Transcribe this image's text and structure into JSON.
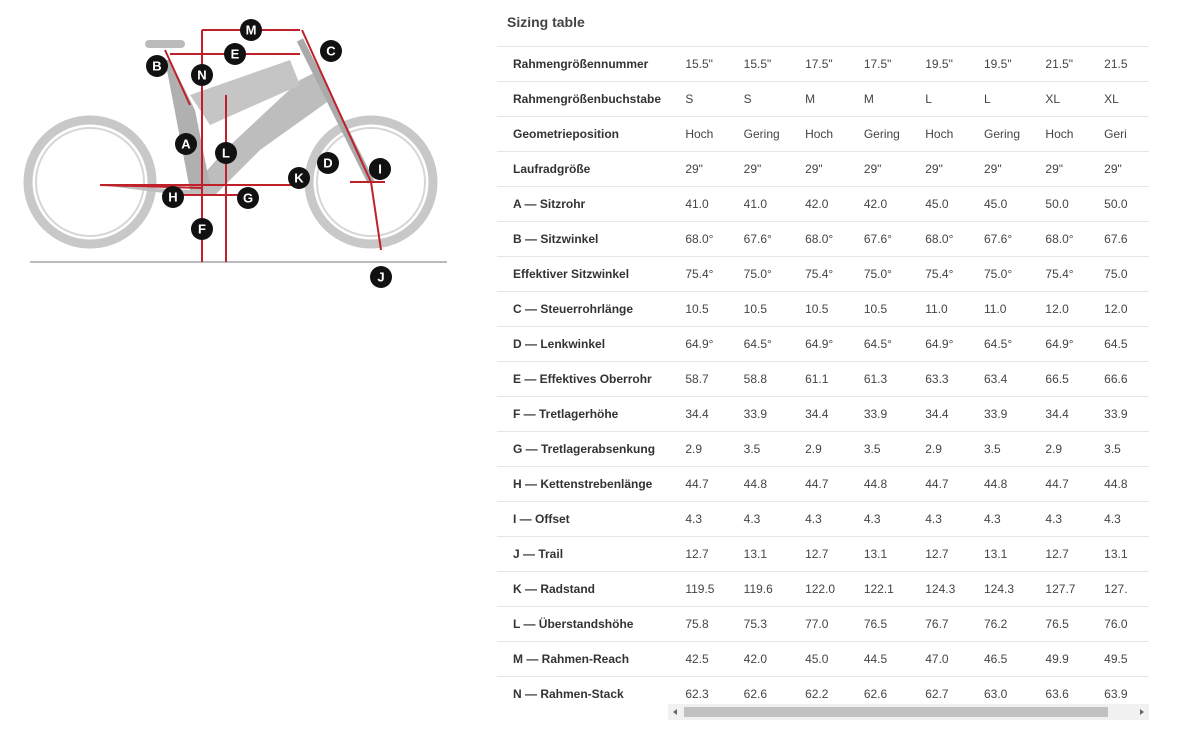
{
  "diagram": {
    "labels": [
      "M",
      "E",
      "C",
      "B",
      "N",
      "A",
      "L",
      "D",
      "I",
      "K",
      "H",
      "G",
      "F",
      "J"
    ]
  },
  "header": {
    "title": "Sizing table"
  },
  "table": {
    "rows": [
      [
        "Rahmengrößennummer",
        "15.5\"",
        "15.5\"",
        "17.5\"",
        "17.5\"",
        "19.5\"",
        "19.5\"",
        "21.5\"",
        "21.5"
      ],
      [
        "Rahmengrößenbuchstabe",
        "S",
        "S",
        "M",
        "M",
        "L",
        "L",
        "XL",
        "XL"
      ],
      [
        "Geometrieposition",
        "Hoch",
        "Gering",
        "Hoch",
        "Gering",
        "Hoch",
        "Gering",
        "Hoch",
        "Geri"
      ],
      [
        "Laufradgröße",
        "29\"",
        "29\"",
        "29\"",
        "29\"",
        "29\"",
        "29\"",
        "29\"",
        "29\""
      ],
      [
        "A — Sitzrohr",
        "41.0",
        "41.0",
        "42.0",
        "42.0",
        "45.0",
        "45.0",
        "50.0",
        "50.0"
      ],
      [
        "B — Sitzwinkel",
        "68.0°",
        "67.6°",
        "68.0°",
        "67.6°",
        "68.0°",
        "67.6°",
        "68.0°",
        "67.6"
      ],
      [
        "Effektiver Sitzwinkel",
        "75.4°",
        "75.0°",
        "75.4°",
        "75.0°",
        "75.4°",
        "75.0°",
        "75.4°",
        "75.0"
      ],
      [
        "C — Steuerrohrlänge",
        "10.5",
        "10.5",
        "10.5",
        "10.5",
        "11.0",
        "11.0",
        "12.0",
        "12.0"
      ],
      [
        "D — Lenkwinkel",
        "64.9°",
        "64.5°",
        "64.9°",
        "64.5°",
        "64.9°",
        "64.5°",
        "64.9°",
        "64.5"
      ],
      [
        "E — Effektives Oberrohr",
        "58.7",
        "58.8",
        "61.1",
        "61.3",
        "63.3",
        "63.4",
        "66.5",
        "66.6"
      ],
      [
        "F — Tretlagerhöhe",
        "34.4",
        "33.9",
        "34.4",
        "33.9",
        "34.4",
        "33.9",
        "34.4",
        "33.9"
      ],
      [
        "G — Tretlagerabsenkung",
        "2.9",
        "3.5",
        "2.9",
        "3.5",
        "2.9",
        "3.5",
        "2.9",
        "3.5"
      ],
      [
        "H — Kettenstrebenlänge",
        "44.7",
        "44.8",
        "44.7",
        "44.8",
        "44.7",
        "44.8",
        "44.7",
        "44.8"
      ],
      [
        "I — Offset",
        "4.3",
        "4.3",
        "4.3",
        "4.3",
        "4.3",
        "4.3",
        "4.3",
        "4.3"
      ],
      [
        "J — Trail",
        "12.7",
        "13.1",
        "12.7",
        "13.1",
        "12.7",
        "13.1",
        "12.7",
        "13.1"
      ],
      [
        "K — Radstand",
        "119.5",
        "119.6",
        "122.0",
        "122.1",
        "124.3",
        "124.3",
        "127.7",
        "127."
      ],
      [
        "L — Überstandshöhe",
        "75.8",
        "75.3",
        "77.0",
        "76.5",
        "76.7",
        "76.2",
        "76.5",
        "76.0"
      ],
      [
        "M — Rahmen-Reach",
        "42.5",
        "42.0",
        "45.0",
        "44.5",
        "47.0",
        "46.5",
        "49.9",
        "49.5"
      ],
      [
        "N — Rahmen-Stack",
        "62.3",
        "62.6",
        "62.2",
        "62.6",
        "62.7",
        "63.0",
        "63.6",
        "63.9"
      ]
    ]
  }
}
